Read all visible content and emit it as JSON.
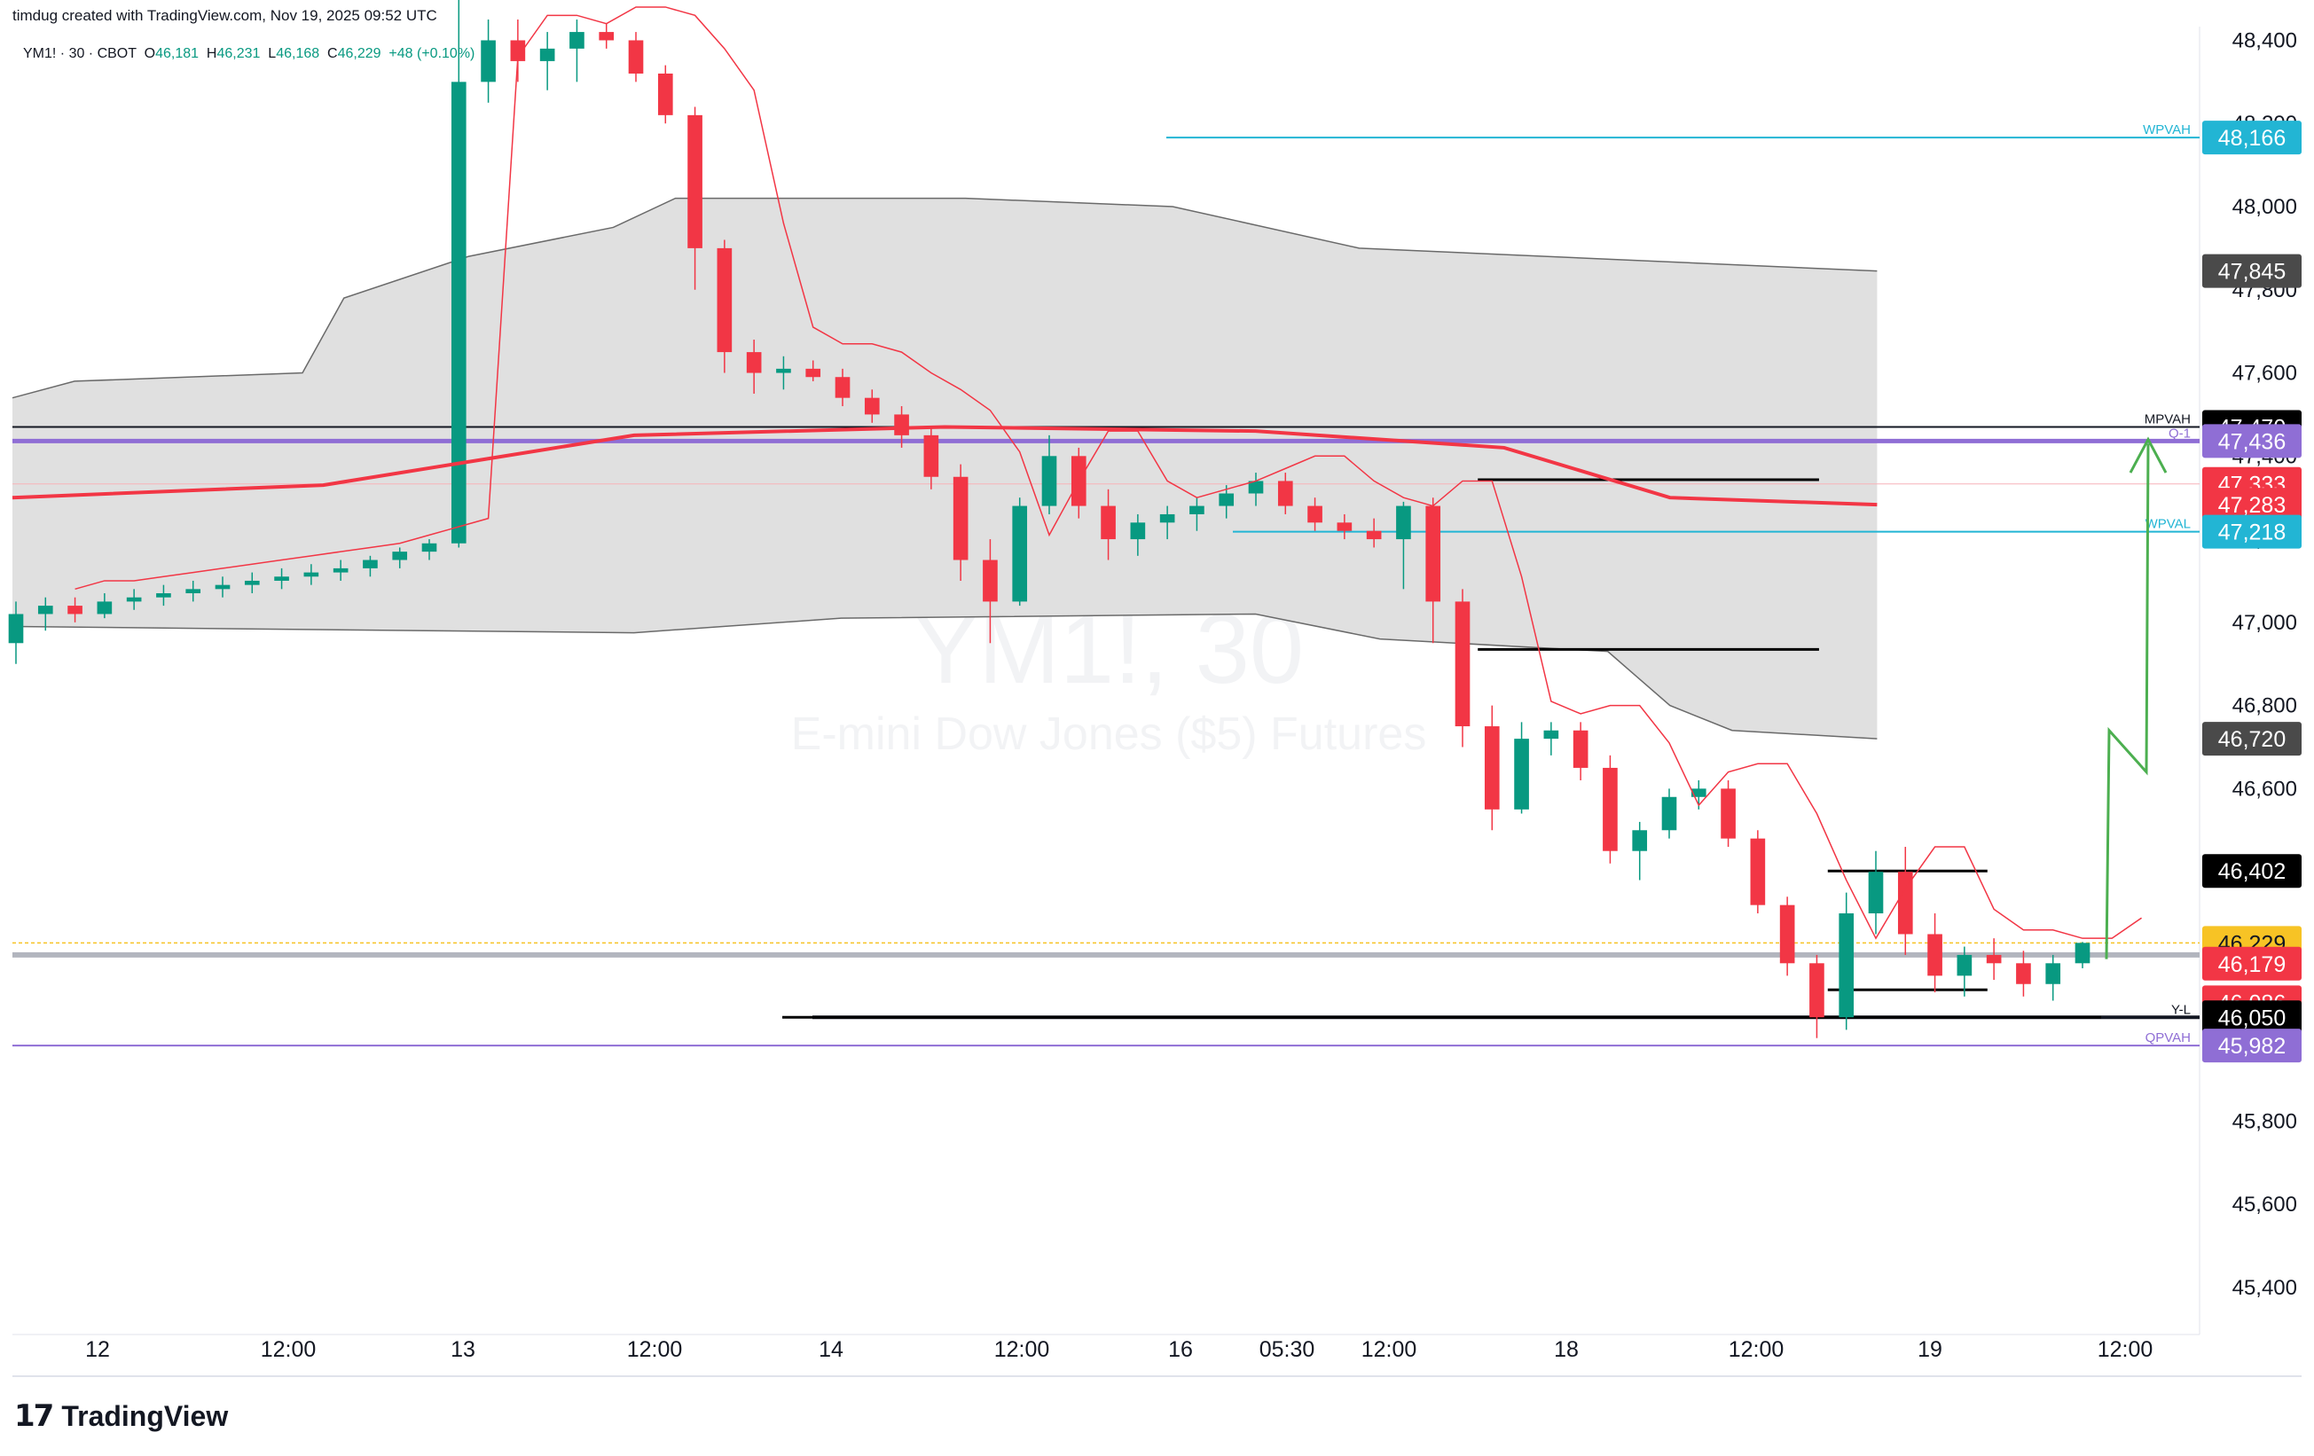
{
  "header": {
    "credit": "timdug created with TradingView.com, Nov 19, 2025 09:52 UTC",
    "symbol_line": "YM1! · 30 · CBOT",
    "ohlc": {
      "o_label": "O",
      "o": "46,181",
      "h_label": "H",
      "h": "46,231",
      "l_label": "L",
      "l": "46,168",
      "c_label": "C",
      "c": "46,229",
      "change": "+48 (+0.10%)"
    }
  },
  "watermark": {
    "symbol": "YM1!, 30",
    "name": "E-mini Dow Jones ($5) Futures"
  },
  "footer": {
    "logo_mark": "17",
    "logo_word": "TradingView"
  },
  "colors": {
    "up": "#089981",
    "down": "#f23645",
    "vwap": "#f23645",
    "band_fill": "#e0e0e0",
    "band_edge": "#6a6a6a",
    "wpva": "#22b5d4",
    "purple": "#8f6ed5",
    "arrow": "#4caf50"
  },
  "chart_data": {
    "type": "candlestick",
    "symbol": "YM1!",
    "timeframe": "30",
    "exchange": "CBOT",
    "ylim": [
      45300,
      48450
    ],
    "y_ticks": [
      "45,400",
      "45,600",
      "45,800",
      "46,000",
      "46,200",
      "46,400",
      "46,600",
      "46,800",
      "47,000",
      "47,200",
      "47,400",
      "47,600",
      "47,800",
      "48,000",
      "48,200",
      "48,400"
    ],
    "x_ticks": [
      "12",
      "12:00",
      "13",
      "12:00",
      "14",
      "12:00",
      "16",
      "05:30",
      "12:00",
      "18",
      "12:00",
      "19",
      "12:00"
    ],
    "price_lines": [
      {
        "label": "WPVAH",
        "price": "48,166",
        "value": 48166,
        "color": "#22b5d4"
      },
      {
        "label": "MPVAH",
        "price": "47,470",
        "value": 47470,
        "color": "#131722"
      },
      {
        "label": "Q-1",
        "price": "47,436",
        "value": 47436,
        "color": "#8f6ed5"
      },
      {
        "label": "WPVAL",
        "price": "47,218",
        "value": 47218,
        "color": "#22b5d4"
      },
      {
        "label": "QPVAH",
        "price": "45,982",
        "value": 45982,
        "color": "#8f6ed5"
      },
      {
        "label": "Y-L",
        "price": "46,050",
        "value": 46050,
        "color": "#131722"
      }
    ],
    "price_badges": [
      {
        "text": "48,166",
        "value": 48166,
        "bg": "#22b5d4",
        "fg": "#ffffff"
      },
      {
        "text": "47,845",
        "value": 47845,
        "bg": "#4a4a4a",
        "fg": "#ffffff"
      },
      {
        "text": "47,470",
        "value": 47470,
        "bg": "#000000",
        "fg": "#ffffff"
      },
      {
        "text": "47,436",
        "value": 47436,
        "bg": "#8f6ed5",
        "fg": "#ffffff"
      },
      {
        "text": "47,333",
        "value": 47333,
        "bg": "#f23645",
        "fg": "#ffffff"
      },
      {
        "text": "47,283",
        "value": 47283,
        "bg": "#f23645",
        "fg": "#ffffff"
      },
      {
        "text": "47,218",
        "value": 47218,
        "bg": "#22b5d4",
        "fg": "#ffffff"
      },
      {
        "text": "46,720",
        "value": 46720,
        "bg": "#4a4a4a",
        "fg": "#ffffff"
      },
      {
        "text": "46,402",
        "value": 46402,
        "bg": "#000000",
        "fg": "#ffffff"
      },
      {
        "text": "46,229",
        "value": 46229,
        "bg": "#f7c325",
        "fg": "#131722"
      },
      {
        "text": "46,179",
        "value": 46179,
        "bg": "#f23645",
        "fg": "#ffffff"
      },
      {
        "text": "46,086",
        "value": 46086,
        "bg": "#f23645",
        "fg": "#ffffff"
      },
      {
        "text": "46,050",
        "value": 46050,
        "bg": "#000000",
        "fg": "#ffffff"
      },
      {
        "text": "45,982",
        "value": 45982,
        "bg": "#8f6ed5",
        "fg": "#ffffff"
      }
    ],
    "vwap_band": {
      "upper": [
        [
          0,
          47540
        ],
        [
          0.03,
          47580
        ],
        [
          0.14,
          47600
        ],
        [
          0.16,
          47780
        ],
        [
          0.22,
          47880
        ],
        [
          0.29,
          47950
        ],
        [
          0.32,
          48020
        ],
        [
          0.46,
          48020
        ],
        [
          0.56,
          48000
        ],
        [
          0.65,
          47900
        ],
        [
          0.9,
          47845
        ]
      ],
      "lower": [
        [
          0,
          46990
        ],
        [
          0.2,
          46980
        ],
        [
          0.3,
          46975
        ],
        [
          0.4,
          47010
        ],
        [
          0.6,
          47020
        ],
        [
          0.66,
          46960
        ],
        [
          0.77,
          46930
        ],
        [
          0.8,
          46800
        ],
        [
          0.83,
          46740
        ],
        [
          0.9,
          46720
        ]
      ]
    },
    "vwap": [
      [
        0,
        47300
      ],
      [
        0.15,
        47330
      ],
      [
        0.3,
        47450
      ],
      [
        0.45,
        47470
      ],
      [
        0.6,
        47460
      ],
      [
        0.72,
        47420
      ],
      [
        0.8,
        47300
      ],
      [
        0.9,
        47283
      ]
    ],
    "hlines_black": [
      {
        "x0": 0.67,
        "x1": 0.826,
        "value": 47343
      },
      {
        "x0": 0.67,
        "x1": 0.826,
        "value": 46935
      },
      {
        "x0": 0.83,
        "x1": 0.903,
        "value": 46402
      },
      {
        "x0": 0.83,
        "x1": 0.903,
        "value": 46116
      },
      {
        "x0": 0.352,
        "x1": 0.955,
        "value": 46050
      }
    ],
    "candles_ohlc_approx": [
      [
        46950,
        47050,
        46900,
        47020
      ],
      [
        47020,
        47060,
        46980,
        47040
      ],
      [
        47040,
        47060,
        47000,
        47020
      ],
      [
        47020,
        47070,
        47010,
        47050
      ],
      [
        47050,
        47080,
        47030,
        47060
      ],
      [
        47060,
        47090,
        47040,
        47070
      ],
      [
        47070,
        47100,
        47050,
        47080
      ],
      [
        47080,
        47110,
        47060,
        47090
      ],
      [
        47090,
        47120,
        47070,
        47100
      ],
      [
        47100,
        47130,
        47080,
        47110
      ],
      [
        47110,
        47140,
        47090,
        47120
      ],
      [
        47120,
        47150,
        47100,
        47130
      ],
      [
        47130,
        47160,
        47110,
        47150
      ],
      [
        47150,
        47180,
        47130,
        47170
      ],
      [
        47170,
        47200,
        47150,
        47190
      ],
      [
        47190,
        48500,
        47180,
        48300
      ],
      [
        48300,
        48450,
        48250,
        48400
      ],
      [
        48400,
        48450,
        48300,
        48350
      ],
      [
        48350,
        48420,
        48280,
        48380
      ],
      [
        48380,
        48450,
        48300,
        48420
      ],
      [
        48420,
        48440,
        48380,
        48400
      ],
      [
        48400,
        48420,
        48300,
        48320
      ],
      [
        48320,
        48340,
        48200,
        48220
      ],
      [
        48220,
        48240,
        47800,
        47900
      ],
      [
        47900,
        47920,
        47600,
        47650
      ],
      [
        47650,
        47680,
        47550,
        47600
      ],
      [
        47600,
        47640,
        47560,
        47610
      ],
      [
        47610,
        47630,
        47580,
        47590
      ],
      [
        47590,
        47610,
        47520,
        47540
      ],
      [
        47540,
        47560,
        47480,
        47500
      ],
      [
        47500,
        47520,
        47420,
        47450
      ],
      [
        47450,
        47470,
        47320,
        47350
      ],
      [
        47350,
        47380,
        47100,
        47150
      ],
      [
        47150,
        47200,
        46950,
        47050
      ],
      [
        47050,
        47300,
        47040,
        47280
      ],
      [
        47280,
        47450,
        47260,
        47400
      ],
      [
        47400,
        47420,
        47250,
        47280
      ],
      [
        47280,
        47320,
        47150,
        47200
      ],
      [
        47200,
        47260,
        47160,
        47240
      ],
      [
        47240,
        47280,
        47200,
        47260
      ],
      [
        47260,
        47300,
        47220,
        47280
      ],
      [
        47280,
        47330,
        47250,
        47310
      ],
      [
        47310,
        47360,
        47280,
        47340
      ],
      [
        47340,
        47360,
        47260,
        47280
      ],
      [
        47280,
        47300,
        47220,
        47240
      ],
      [
        47240,
        47260,
        47200,
        47220
      ],
      [
        47220,
        47250,
        47180,
        47200
      ],
      [
        47200,
        47290,
        47080,
        47280
      ],
      [
        47280,
        47300,
        46950,
        47050
      ],
      [
        47050,
        47080,
        46700,
        46750
      ],
      [
        46750,
        46800,
        46500,
        46550
      ],
      [
        46550,
        46760,
        46540,
        46720
      ],
      [
        46720,
        46760,
        46680,
        46740
      ],
      [
        46740,
        46760,
        46620,
        46650
      ],
      [
        46650,
        46680,
        46420,
        46450
      ],
      [
        46450,
        46520,
        46380,
        46500
      ],
      [
        46500,
        46600,
        46480,
        46580
      ],
      [
        46580,
        46620,
        46550,
        46600
      ],
      [
        46600,
        46620,
        46460,
        46480
      ],
      [
        46480,
        46500,
        46300,
        46320
      ],
      [
        46320,
        46340,
        46150,
        46180
      ],
      [
        46180,
        46200,
        46000,
        46050
      ],
      [
        46050,
        46350,
        46020,
        46300
      ],
      [
        46300,
        46450,
        46250,
        46400
      ],
      [
        46400,
        46460,
        46200,
        46250
      ],
      [
        46250,
        46300,
        46110,
        46150
      ],
      [
        46150,
        46220,
        46100,
        46200
      ],
      [
        46200,
        46240,
        46140,
        46180
      ],
      [
        46180,
        46210,
        46100,
        46130
      ],
      [
        46130,
        46200,
        46090,
        46180
      ],
      [
        46180,
        46231,
        46168,
        46229
      ]
    ]
  }
}
